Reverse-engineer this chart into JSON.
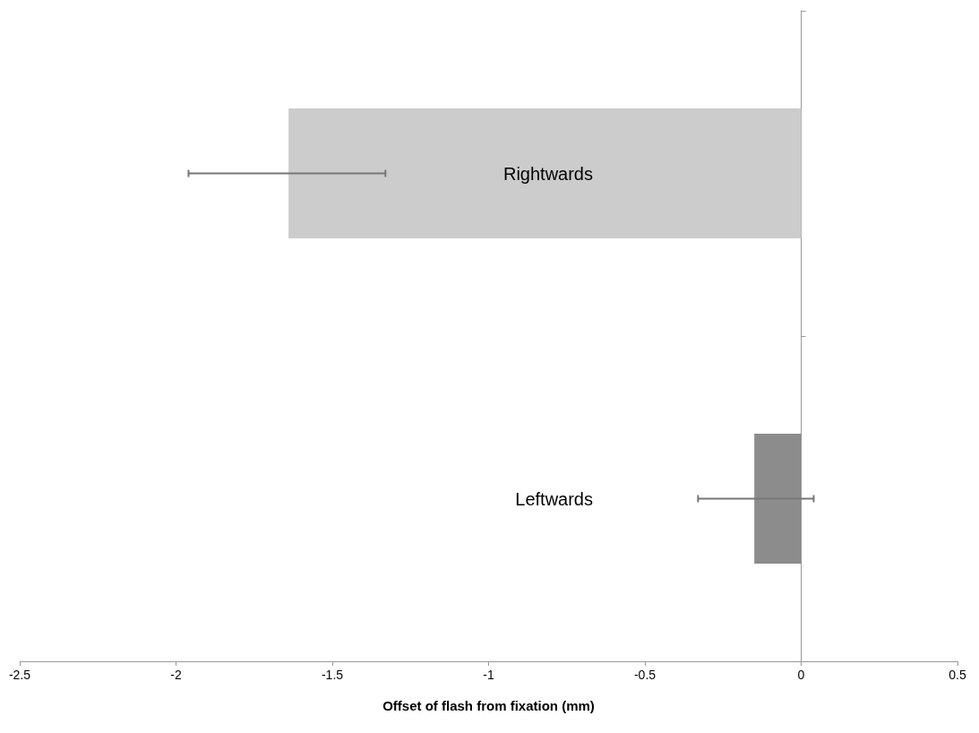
{
  "chart_data": {
    "type": "bar",
    "orientation": "horizontal",
    "xlabel": "Offset of flash from fixation (mm)",
    "categories": [
      "Rightwards",
      "Leftwards"
    ],
    "values": [
      -1.64,
      -0.15
    ],
    "colors": [
      "#cccccc",
      "#8c8c8c"
    ],
    "errors": [
      [
        -1.96,
        -1.33
      ],
      [
        -0.33,
        0.04
      ]
    ],
    "xlim": [
      -2.5,
      0.5
    ],
    "xticks": [
      -2.5,
      -2,
      -1.5,
      -1,
      -0.5,
      0,
      0.5
    ]
  }
}
